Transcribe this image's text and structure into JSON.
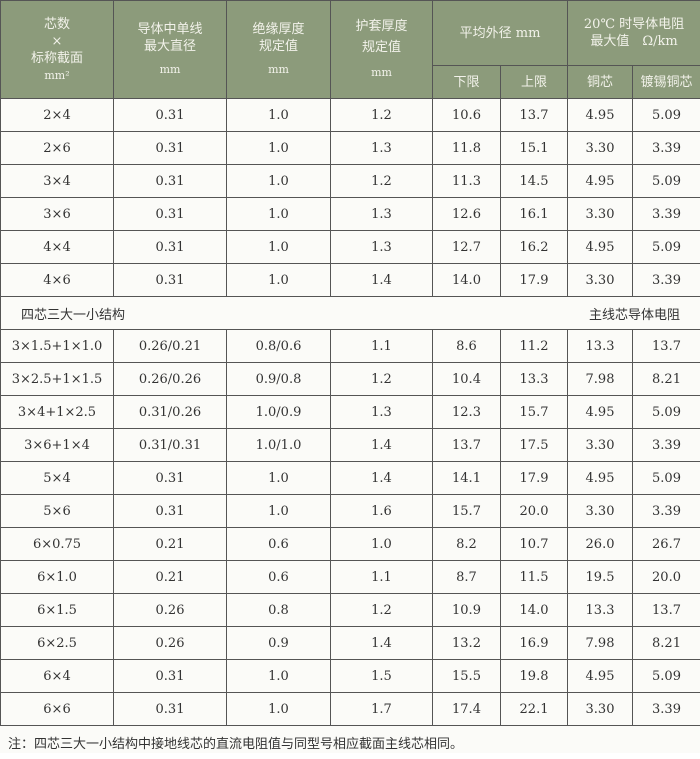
{
  "header": {
    "col1": [
      "芯数",
      "×",
      "标称截面",
      "mm²"
    ],
    "col2": [
      "导体中单线",
      "最大直径",
      "mm"
    ],
    "col3": [
      "绝缘厚度",
      "规定值",
      "mm"
    ],
    "col4": [
      "护套厚度",
      "规定值",
      "mm"
    ],
    "col5": "平均外径 mm",
    "col6": [
      "20℃ 时导体电阻",
      "最大值　Ω/km"
    ],
    "sub": [
      "下限",
      "上限",
      "铜芯",
      "镀锡铜芯"
    ]
  },
  "rows_a": [
    [
      "2×4",
      "0.31",
      "1.0",
      "1.2",
      "10.6",
      "13.7",
      "4.95",
      "5.09"
    ],
    [
      "2×6",
      "0.31",
      "1.0",
      "1.3",
      "11.8",
      "15.1",
      "3.30",
      "3.39"
    ],
    [
      "3×4",
      "0.31",
      "1.0",
      "1.2",
      "11.3",
      "14.5",
      "4.95",
      "5.09"
    ],
    [
      "3×6",
      "0.31",
      "1.0",
      "1.3",
      "12.6",
      "16.1",
      "3.30",
      "3.39"
    ],
    [
      "4×4",
      "0.31",
      "1.0",
      "1.3",
      "12.7",
      "16.2",
      "4.95",
      "5.09"
    ],
    [
      "4×6",
      "0.31",
      "1.0",
      "1.4",
      "14.0",
      "17.9",
      "3.30",
      "3.39"
    ]
  ],
  "section": {
    "left": "四芯三大一小结构",
    "right": "主线芯导体电阻"
  },
  "rows_b": [
    [
      "3×1.5+1×1.0",
      "0.26/0.21",
      "0.8/0.6",
      "1.1",
      "8.6",
      "11.2",
      "13.3",
      "13.7"
    ],
    [
      "3×2.5+1×1.5",
      "0.26/0.26",
      "0.9/0.8",
      "1.2",
      "10.4",
      "13.3",
      "7.98",
      "8.21"
    ],
    [
      "3×4+1×2.5",
      "0.31/0.26",
      "1.0/0.9",
      "1.3",
      "12.3",
      "15.7",
      "4.95",
      "5.09"
    ],
    [
      "3×6+1×4",
      "0.31/0.31",
      "1.0/1.0",
      "1.4",
      "13.7",
      "17.5",
      "3.30",
      "3.39"
    ],
    [
      "5×4",
      "0.31",
      "1.0",
      "1.4",
      "14.1",
      "17.9",
      "4.95",
      "5.09"
    ],
    [
      "5×6",
      "0.31",
      "1.0",
      "1.6",
      "15.7",
      "20.0",
      "3.30",
      "3.39"
    ],
    [
      "6×0.75",
      "0.21",
      "0.6",
      "1.0",
      "8.2",
      "10.7",
      "26.0",
      "26.7"
    ],
    [
      "6×1.0",
      "0.21",
      "0.6",
      "1.1",
      "8.7",
      "11.5",
      "19.5",
      "20.0"
    ],
    [
      "6×1.5",
      "0.26",
      "0.8",
      "1.2",
      "10.9",
      "14.0",
      "13.3",
      "13.7"
    ],
    [
      "6×2.5",
      "0.26",
      "0.9",
      "1.4",
      "13.2",
      "16.9",
      "7.98",
      "8.21"
    ],
    [
      "6×4",
      "0.31",
      "1.0",
      "1.5",
      "15.5",
      "19.8",
      "4.95",
      "5.09"
    ],
    [
      "6×6",
      "0.31",
      "1.0",
      "1.7",
      "17.4",
      "22.1",
      "3.30",
      "3.39"
    ]
  ],
  "note": "注：四芯三大一小结构中接地线芯的直流电阻值与同型号相应截面主线芯相同。",
  "colors": {
    "header_bg": "#8c9b7b",
    "header_text": "#f2f2ea"
  }
}
